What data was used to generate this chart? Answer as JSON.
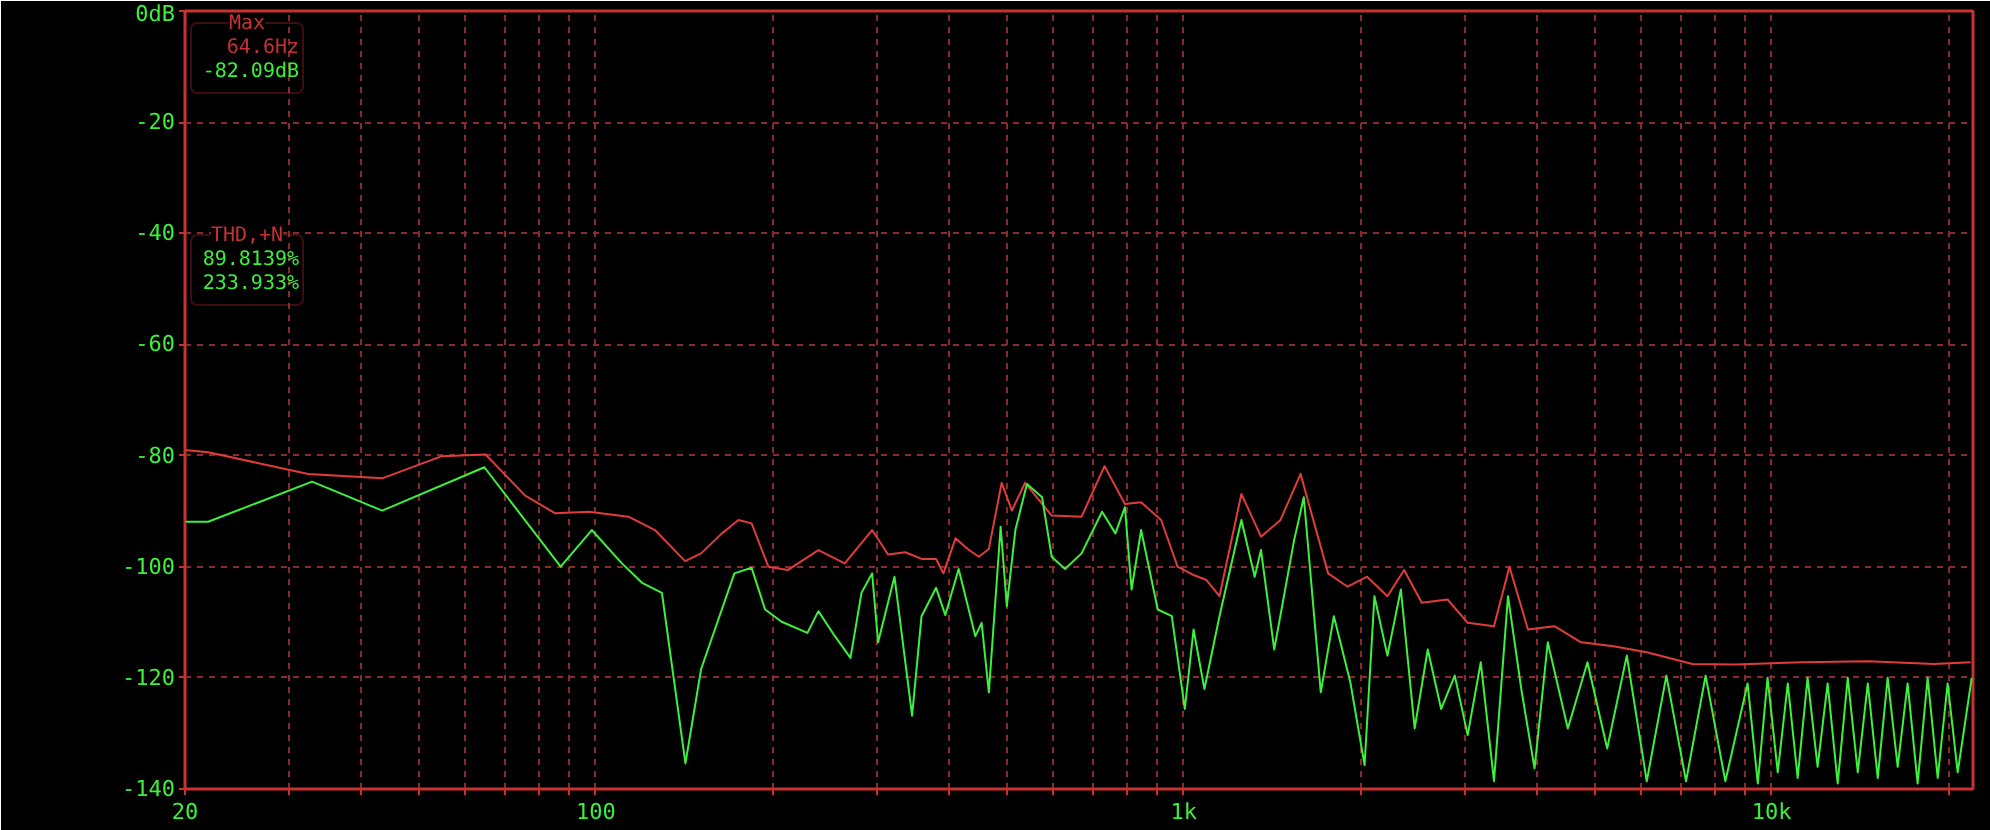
{
  "chart_data": {
    "type": "line",
    "xlim": [
      20,
      22000
    ],
    "ylim": [
      -140,
      0
    ],
    "log": "x",
    "grid": true,
    "line_style": "solid",
    "marker": "none",
    "xticks": [
      20,
      {
        "value": 30,
        "label": null
      },
      {
        "value": 40,
        "label": null
      },
      {
        "value": 50,
        "label": null
      },
      {
        "value": 60,
        "label": null
      },
      {
        "value": 70,
        "label": null
      },
      {
        "value": 80,
        "label": null
      },
      {
        "value": 90,
        "label": null
      },
      100,
      {
        "value": 200,
        "label": null
      },
      {
        "value": 300,
        "label": null
      },
      {
        "value": 400,
        "label": null
      },
      {
        "value": 500,
        "label": null
      },
      {
        "value": 600,
        "label": null
      },
      {
        "value": 700,
        "label": null
      },
      {
        "value": 800,
        "label": null
      },
      {
        "value": 900,
        "label": null
      },
      {
        "value": 1000,
        "label": "1k"
      },
      {
        "value": 2000,
        "label": null
      },
      {
        "value": 3000,
        "label": null
      },
      {
        "value": 4000,
        "label": null
      },
      {
        "value": 5000,
        "label": null
      },
      {
        "value": 6000,
        "label": null
      },
      {
        "value": 7000,
        "label": null
      },
      {
        "value": 8000,
        "label": null
      },
      {
        "value": 9000,
        "label": null
      },
      {
        "value": 10000,
        "label": "10k"
      },
      {
        "value": 20000,
        "label": null
      }
    ],
    "yticks": [
      {
        "value": 0,
        "label": "0dB"
      },
      -20,
      -40,
      -60,
      -80,
      -100,
      -120,
      -140
    ],
    "annotations": [
      "Max",
      "64.6Hz",
      "-82.09dB",
      "THD,+N",
      "89.8139%",
      "233.933%"
    ],
    "series": [
      {
        "color": "#e03c3c",
        "x": [
          20,
          21.9,
          32.4,
          43.3,
          54.7,
          64.9,
          75.8,
          85.3,
          97.2,
          113.6,
          126,
          141.8,
          151,
          163.8,
          174.8,
          184,
          196.5,
          212,
          239,
          265,
          295,
          314,
          336,
          358,
          379,
          390,
          409,
          431,
          448,
          466,
          490,
          510,
          537,
          596,
          670,
          733,
          794,
          846,
          915,
          976,
          1039,
          1093,
          1150,
          1253,
          1353,
          1460,
          1580,
          1620,
          1760,
          1900,
          2050,
          2220,
          2370,
          2540,
          2810,
          3040,
          3370,
          3580,
          3850,
          4270,
          4740,
          5380,
          6130,
          7330,
          8660,
          11300,
          14600,
          18900,
          21800
        ],
        "values": [
          -79,
          -79.4,
          -83.3,
          -84.1,
          -80.1,
          -79.8,
          -87.2,
          -90.4,
          -90.1,
          -91,
          -93.4,
          -99,
          -97.6,
          -94,
          -91.6,
          -92.2,
          -100,
          -100.6,
          -97,
          -99.4,
          -93.4,
          -97.8,
          -97.4,
          -98.6,
          -98.6,
          -101.2,
          -94.9,
          -97,
          -98.2,
          -96.8,
          -84.9,
          -89.9,
          -84.9,
          -90.8,
          -91,
          -81.9,
          -88.7,
          -88.4,
          -91.6,
          -100,
          -101.5,
          -102.4,
          -105.3,
          -86.9,
          -94.6,
          -91.6,
          -83.3,
          -87.5,
          -101.2,
          -103.6,
          -101.8,
          -105.3,
          -100.6,
          -106.5,
          -105.9,
          -110.1,
          -110.7,
          -100,
          -111.3,
          -110.7,
          -113.6,
          -114.3,
          -115.4,
          -117.5,
          -117.6,
          -117.2,
          -117,
          -117.5,
          -117.2
        ]
      },
      {
        "color": "#3cf03c",
        "x": [
          20,
          21.9,
          32.9,
          43.3,
          64.6,
          87.1,
          98.4,
          110.7,
          119.8,
          129.5,
          142,
          151,
          172,
          184,
          194,
          207,
          229,
          239,
          255,
          271,
          283,
          295,
          302,
          322,
          345,
          358,
          379,
          393,
          414,
          442,
          453,
          466,
          488,
          500,
          517,
          541,
          574,
          596,
          628,
          670,
          726,
          765,
          794,
          815,
          846,
          903,
          954,
          1004,
          1039,
          1084,
          1150,
          1253,
          1320,
          1353,
          1425,
          1540,
          1600,
          1710,
          1800,
          1920,
          2030,
          2110,
          2220,
          2340,
          2470,
          2600,
          2740,
          2890,
          3040,
          3200,
          3370,
          3560,
          3750,
          3950,
          4160,
          4500,
          4860,
          5250,
          5670,
          6130,
          6620,
          7150,
          7720,
          8340,
          9100,
          9470,
          9840,
          10240,
          10650,
          11070,
          11510,
          11970,
          12450,
          12950,
          13470,
          14010,
          14570,
          15150,
          15750,
          16380,
          17030,
          17710,
          18420,
          19160,
          19920,
          20720,
          21890
        ],
        "values": [
          -91.9,
          -91.9,
          -84.7,
          -89.9,
          -82.1,
          -100,
          -93.4,
          -99.4,
          -102.9,
          -104.7,
          -135.4,
          -118.4,
          -101.2,
          -100.2,
          -107.7,
          -109.9,
          -111.9,
          -108,
          -112.5,
          -116.4,
          -104.7,
          -101.2,
          -113.6,
          -101.8,
          -126.8,
          -108.9,
          -103.8,
          -108.7,
          -100.4,
          -112.5,
          -110.1,
          -122.6,
          -92.8,
          -107.1,
          -93.4,
          -85.1,
          -87.5,
          -98.2,
          -100.4,
          -97.6,
          -90.1,
          -94,
          -89.3,
          -104.1,
          -93.4,
          -107.7,
          -108.9,
          -125.6,
          -111.3,
          -122,
          -108.9,
          -91.6,
          -101.8,
          -97,
          -114.9,
          -95.3,
          -87.5,
          -122.6,
          -108.9,
          -120.8,
          -135.7,
          -105.3,
          -116,
          -104.1,
          -129.1,
          -114.9,
          -125.6,
          -119.6,
          -130.3,
          -117.2,
          -138.6,
          -105.3,
          -122,
          -136.3,
          -113.6,
          -129.1,
          -117.2,
          -132.7,
          -116,
          -138.6,
          -119.6,
          -138.6,
          -119.6,
          -138.6,
          -121,
          -139,
          -120,
          -137,
          -121,
          -138,
          -120,
          -136,
          -121,
          -139,
          -120,
          -137,
          -121,
          -138,
          -120,
          -136,
          -121,
          -139,
          -120,
          -138,
          -121,
          -137,
          -120
        ]
      }
    ]
  }
}
